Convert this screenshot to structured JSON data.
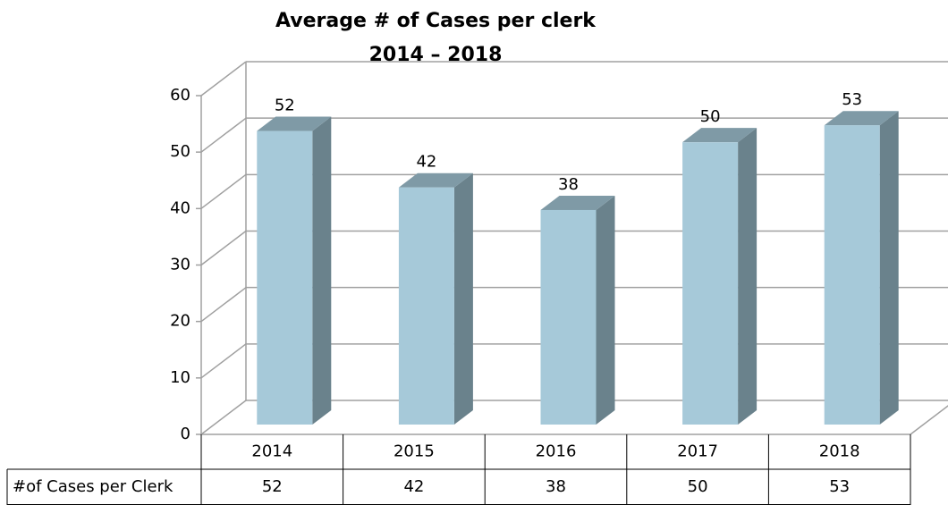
{
  "chart_data": {
    "type": "bar3d",
    "title": "Average # of Cases per clerk",
    "subtitle": "2014 – 2018",
    "categories": [
      "2014",
      "2015",
      "2016",
      "2017",
      "2018"
    ],
    "series": [
      {
        "name": "#of Cases per Clerk",
        "color": "#a6c9d9",
        "values": [
          52,
          42,
          38,
          50,
          53
        ]
      }
    ],
    "ylim": [
      0,
      60
    ],
    "yticks": [
      0,
      10,
      20,
      30,
      40,
      50,
      60
    ],
    "grid": true,
    "data_table": true
  }
}
